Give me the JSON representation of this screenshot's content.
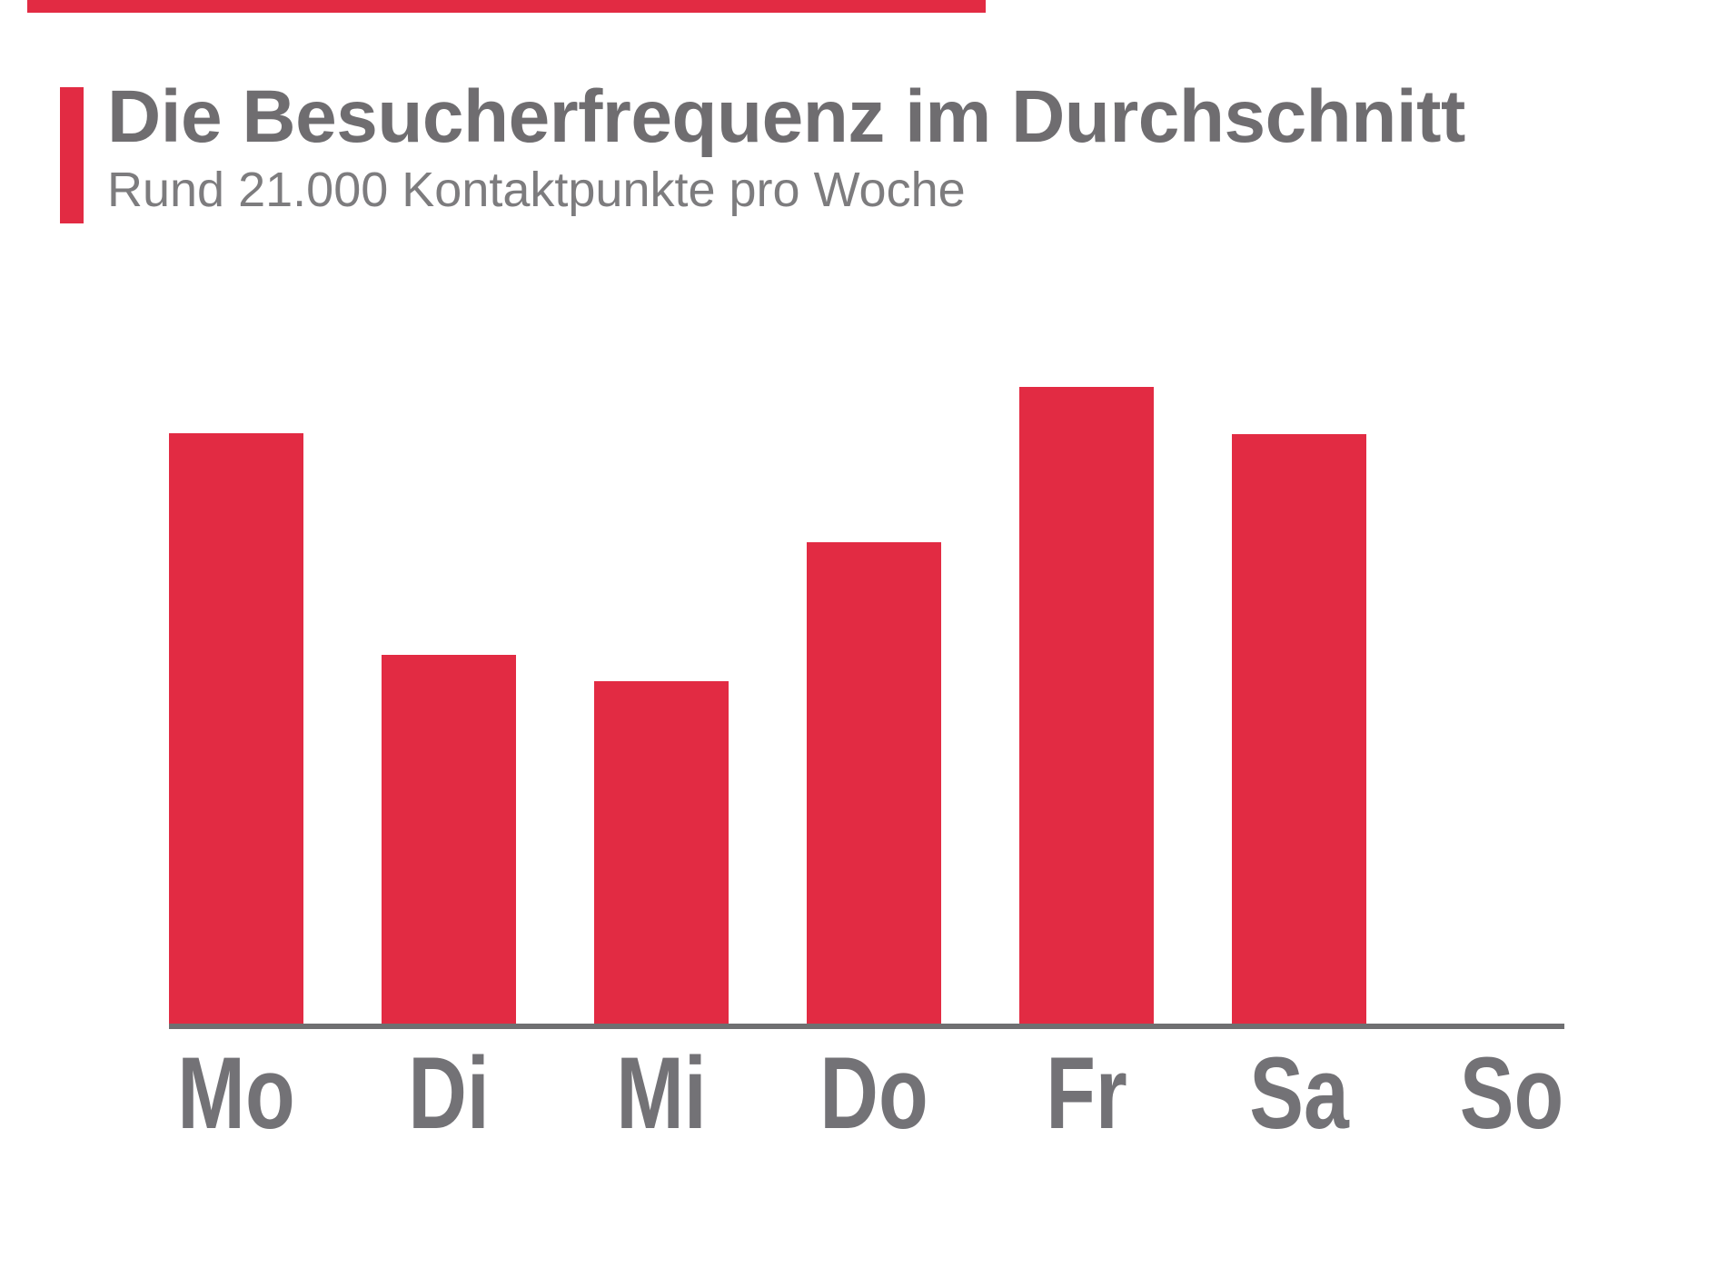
{
  "header": {
    "title": "Die Besucherfrequenz im Durchschnitt",
    "subtitle": "Rund 21.000 Kontaktpunkte pro Woche"
  },
  "colors": {
    "accent_red": "#E22B43",
    "title_gray": "#6F6D70",
    "subtitle_gray": "#7D7C7E",
    "label_gray": "#737276",
    "axis_gray": "#6F6F71"
  },
  "chart_data": {
    "type": "bar",
    "title": "Die Besucherfrequenz im Durchschnitt",
    "subtitle": "Rund 21.000 Kontaktpunkte pro Woche",
    "categories": [
      "Mo",
      "Di",
      "Mi",
      "Do",
      "Fr",
      "Sa",
      "So"
    ],
    "values": [
      4120,
      2570,
      2390,
      3360,
      4440,
      4110,
      0
    ],
    "xlabel": "",
    "ylabel": "",
    "ylim": [
      0,
      4700
    ],
    "grid": false,
    "legend": false,
    "bar_color": "#E22B43"
  }
}
